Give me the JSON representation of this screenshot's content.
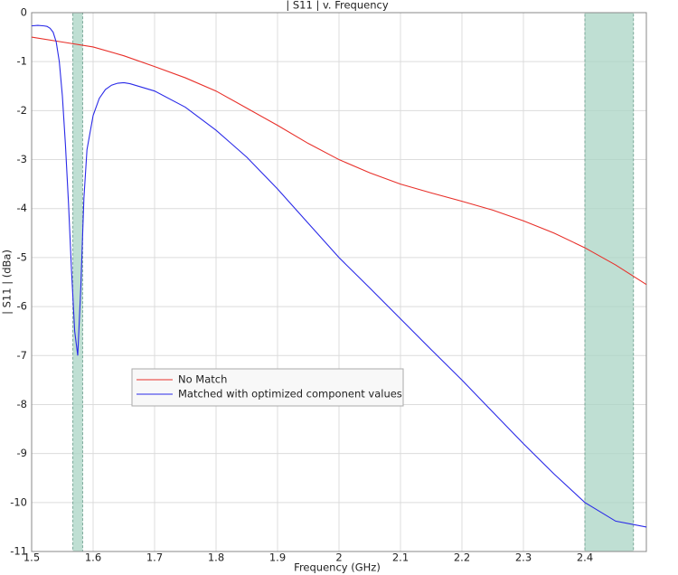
{
  "chart_data": {
    "type": "line",
    "title": "| S11 | v. Frequency",
    "x_label": "Frequency (GHz)",
    "y_label": "| S11 | (dBa)",
    "xlim": [
      1.5,
      2.5
    ],
    "ylim": [
      -11,
      0
    ],
    "xticks": [
      1.5,
      1.6,
      1.7,
      1.8,
      1.9,
      2,
      2.1,
      2.2,
      2.3,
      2.4
    ],
    "yticks": [
      0,
      -1,
      -2,
      -3,
      -4,
      -5,
      -6,
      -7,
      -8,
      -9,
      -10,
      -11
    ],
    "grid": true,
    "bands": [
      [
        1.567,
        1.583
      ],
      [
        2.4,
        2.479
      ]
    ],
    "band_color": "#a9d4c4",
    "series": [
      {
        "name": "No Match",
        "color": "#e8302a",
        "x": [
          1.5,
          1.55,
          1.6,
          1.65,
          1.7,
          1.75,
          1.8,
          1.85,
          1.9,
          1.95,
          2.0,
          2.05,
          2.1,
          2.15,
          2.2,
          2.25,
          2.3,
          2.35,
          2.4,
          2.45,
          2.5
        ],
        "values": [
          -0.5,
          -0.6,
          -0.7,
          -0.88,
          -1.1,
          -1.33,
          -1.6,
          -1.95,
          -2.3,
          -2.67,
          -3.0,
          -3.27,
          -3.5,
          -3.68,
          -3.85,
          -4.03,
          -4.25,
          -4.5,
          -4.8,
          -5.15,
          -5.55
        ]
      },
      {
        "name": "Matched with optimized component values",
        "color": "#2a2ae8",
        "x": [
          1.5,
          1.51,
          1.52,
          1.525,
          1.53,
          1.535,
          1.54,
          1.545,
          1.55,
          1.555,
          1.56,
          1.565,
          1.57,
          1.575,
          1.58,
          1.585,
          1.59,
          1.6,
          1.61,
          1.62,
          1.63,
          1.64,
          1.65,
          1.66,
          1.7,
          1.75,
          1.8,
          1.85,
          1.9,
          1.95,
          2.0,
          2.05,
          2.1,
          2.15,
          2.2,
          2.25,
          2.3,
          2.35,
          2.4,
          2.45,
          2.5
        ],
        "values": [
          -0.27,
          -0.26,
          -0.27,
          -0.28,
          -0.32,
          -0.4,
          -0.6,
          -1.0,
          -1.7,
          -2.7,
          -3.9,
          -5.3,
          -6.5,
          -7.0,
          -5.6,
          -3.8,
          -2.8,
          -2.1,
          -1.75,
          -1.57,
          -1.48,
          -1.44,
          -1.43,
          -1.45,
          -1.6,
          -1.93,
          -2.4,
          -2.95,
          -3.6,
          -4.3,
          -5.0,
          -5.62,
          -6.25,
          -6.88,
          -7.5,
          -8.15,
          -8.8,
          -9.42,
          -10.0,
          -10.38,
          -10.5
        ]
      }
    ]
  }
}
